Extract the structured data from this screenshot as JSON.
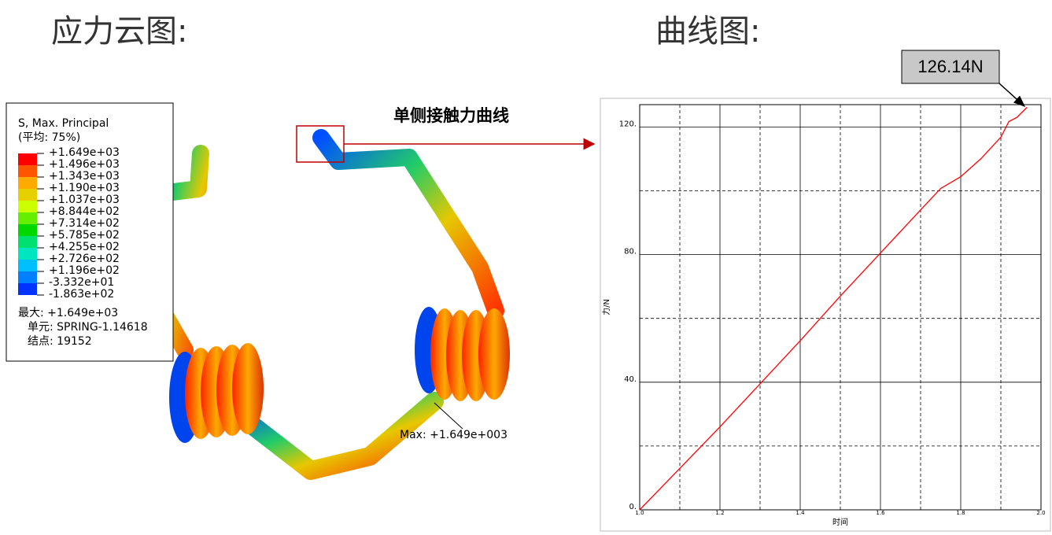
{
  "left_title": "应力云图:",
  "right_title": "曲线图:",
  "contour_legend": {
    "title": "S, Max. Principal",
    "subtitle": "(平均: 75%)",
    "labels": [
      "+1.649e+03",
      "+1.496e+03",
      "+1.343e+03",
      "+1.190e+03",
      "+1.037e+03",
      "+8.844e+02",
      "+7.314e+02",
      "+5.785e+02",
      "+4.255e+02",
      "+2.726e+02",
      "+1.196e+02",
      "-3.332e+01",
      "-1.863e+02"
    ],
    "colors": [
      "#ff0000",
      "#ff5500",
      "#ffaa00",
      "#e6d000",
      "#ccff00",
      "#66ee00",
      "#00d800",
      "#00e070",
      "#00e6c0",
      "#00bfff",
      "#0080ff",
      "#0033ff"
    ],
    "max_line": "最大: +1.649e+03",
    "element_line": "单元: SPRING-1.14618",
    "node_line": "结点: 19152"
  },
  "max_annotation": "Max: +1.649e+003",
  "curve_caption": "单侧接触力曲线",
  "chart_data": {
    "type": "line",
    "x": [
      1.0,
      1.1,
      1.2,
      1.3,
      1.4,
      1.5,
      1.6,
      1.7,
      1.75,
      1.8,
      1.85,
      1.9,
      1.92,
      1.94,
      1.965
    ],
    "values": [
      0,
      13,
      26,
      39.5,
      53,
      67,
      80.5,
      94,
      100.7,
      104.4,
      110,
      116.8,
      121.7,
      123,
      126.14
    ],
    "color": "#ff0000",
    "xlim": [
      1.0,
      2.0
    ],
    "ylim": [
      0,
      127
    ],
    "xticks": [
      {
        "value": 1.0,
        "label": "1.0"
      },
      {
        "value": 1.2,
        "label": "1.2"
      },
      {
        "value": 1.4,
        "label": "1.4"
      },
      {
        "value": 1.6,
        "label": "1.6"
      },
      {
        "value": 1.8,
        "label": "1.8"
      },
      {
        "value": 2.0,
        "label": "2.0"
      }
    ],
    "yticks": [
      {
        "value": 0,
        "label": "0."
      },
      {
        "value": 40,
        "label": "40."
      },
      {
        "value": 80,
        "label": "80."
      },
      {
        "value": 120,
        "label": "120."
      }
    ],
    "x_minor_grid": [
      1.1,
      1.3,
      1.5,
      1.7,
      1.9
    ],
    "y_minor_grid": [
      20,
      60,
      100
    ],
    "grid": true,
    "xlabel": "时间",
    "ylabel": "力/N",
    "annotation": "126.14N"
  }
}
